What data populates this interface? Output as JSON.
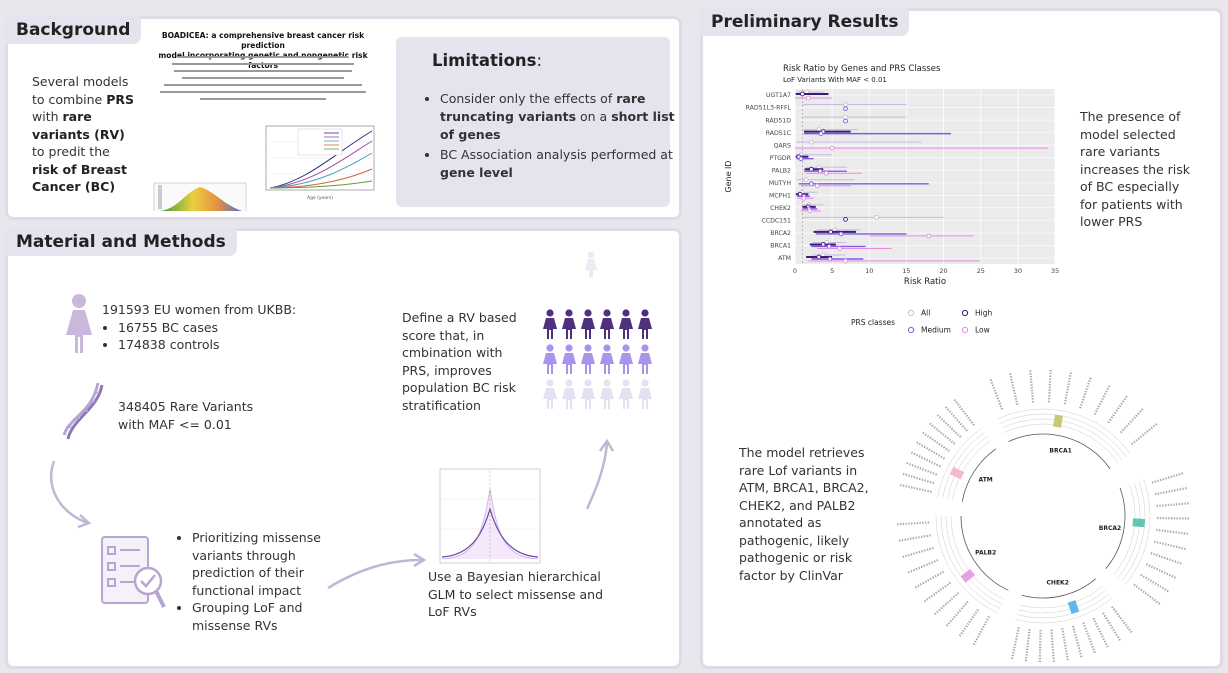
{
  "background": {
    "title": "Background",
    "intro_pre": "Several models to combine",
    "intro_prs": "PRS",
    "intro_with": "with",
    "intro_rv": "rare variants (RV)",
    "intro_mid": "to predit the",
    "intro_risk": "risk of Breast Cancer (BC)",
    "paper_title_1": "BOADICEA: a comprehensive breast cancer risk prediction",
    "paper_title_2": "model incorporating genetic and nongenetic risk factors",
    "paper_axis_x": "Age (years)",
    "limitations_title": "Limitations",
    "limitations_colon": ":",
    "lim1_pre": "Consider only the effects of",
    "lim1_b1": "rare truncating variants",
    "lim1_mid": "on a",
    "lim1_b2": "short list of genes",
    "lim2_pre": "BC Association analysis performed at",
    "lim2_b": "gene level"
  },
  "methods": {
    "title": "Material and Methods",
    "cohort_line": "191593 EU women from UKBB:",
    "cases": "16755 BC cases",
    "controls": "174838 controls",
    "variants_line": "348405 Rare Variants with MAF <= 0.01",
    "step1": "Prioritizing missense variants through prediction of their functional impact",
    "step2": "Grouping LoF and missense RVs",
    "glm": "Use a  Bayesian hierarchical GLM to select missense and LoF RVs",
    "score": "Define a RV based score that, in cmbination with PRS, improves population BC risk stratification"
  },
  "results": {
    "title": "Preliminary Results",
    "finding1": "The presence of model selected rare variants increases the risk of BC especially for patients with lower PRS",
    "finding2": "The model retrieves rare Lof variants in ATM, BRCA1, BRCA2, CHEK2, and PALB2 annotated as pathogenic, likely pathogenic or risk factor by ClinVar"
  },
  "colors": {
    "accent": "#7a5ea8",
    "panel_tab": "#e6e3ef",
    "prs_all": "#c5bde0",
    "prs_high": "#3b1a72",
    "prs_medium": "#7a5be0",
    "prs_low": "#e68ae6"
  },
  "chart_data": {
    "type": "forest",
    "title": "Risk Ratio by Genes and PRS Classes",
    "subtitle": "LoF Variants With MAF < 0.01",
    "xlabel": "Risk Ratio",
    "ylabel": "Gene ID",
    "xlim": [
      0,
      35
    ],
    "xticks": [
      0,
      5,
      10,
      15,
      20,
      25,
      30,
      35
    ],
    "categories": [
      "UGT1A7",
      "RAD51L3-RFFL",
      "RAD51D",
      "RAD51C",
      "QARS",
      "PTGDR",
      "PALB2",
      "MUTYH",
      "MCPH1",
      "CHEK2",
      "CCDC151",
      "BRCA2",
      "BRCA1",
      "ATM"
    ],
    "legend_title": "PRS classes",
    "legend": [
      "All",
      "High",
      "Medium",
      "Low"
    ],
    "series": [
      {
        "name": "All",
        "values": [
          1.6,
          6.8,
          6.8,
          3.2,
          2.2,
          0.8,
          3.2,
          1.5,
          0.9,
          1.9,
          11.0,
          5.3,
          4.3,
          3.8
        ],
        "lo": [
          0.2,
          1.0,
          1.0,
          1.2,
          0.2,
          0.1,
          1.5,
          0.2,
          0.2,
          1.0,
          1.0,
          3.0,
          2.4,
          2.3
        ],
        "hi": [
          3.8,
          15.0,
          15.0,
          8.5,
          17.0,
          5.0,
          7.0,
          8.0,
          3.0,
          3.8,
          20.0,
          8.8,
          6.9,
          6.8
        ]
      },
      {
        "name": "High",
        "values": [
          1.0,
          0.0,
          0.0,
          3.8,
          0.0,
          0.5,
          2.2,
          0.0,
          0.7,
          1.8,
          6.8,
          4.8,
          3.8,
          3.2
        ],
        "lo": [
          0.1,
          0.0,
          0.0,
          1.2,
          0.0,
          0.1,
          1.3,
          0.0,
          0.1,
          1.0,
          6.8,
          2.5,
          2.0,
          1.5
        ],
        "hi": [
          4.5,
          0.0,
          0.0,
          7.5,
          0.0,
          1.8,
          3.8,
          0.0,
          1.8,
          2.8,
          6.8,
          8.2,
          5.5,
          5.0
        ]
      },
      {
        "name": "Medium",
        "values": [
          0.0,
          6.8,
          6.8,
          3.5,
          0.0,
          0.8,
          3.4,
          2.2,
          1.2,
          1.9,
          0.0,
          6.2,
          4.6,
          4.7
        ],
        "lo": [
          0.0,
          6.8,
          6.8,
          1.2,
          0.0,
          0.2,
          1.2,
          0.5,
          0.3,
          1.0,
          0.0,
          2.8,
          2.2,
          2.2
        ],
        "hi": [
          0.0,
          6.8,
          6.8,
          21.0,
          0.0,
          2.5,
          7.0,
          18.0,
          2.0,
          3.0,
          0.0,
          15.0,
          9.5,
          9.2
        ]
      },
      {
        "name": "Low",
        "values": [
          1.8,
          0.0,
          0.0,
          0.0,
          5.0,
          0.0,
          4.2,
          3.0,
          1.2,
          2.0,
          0.0,
          18.0,
          6.0,
          6.8
        ],
        "lo": [
          0.0,
          0.0,
          0.0,
          0.0,
          0.0,
          0.0,
          1.5,
          0.8,
          0.3,
          0.8,
          0.0,
          10.0,
          3.0,
          1.8
        ],
        "hi": [
          5.0,
          0.0,
          0.0,
          0.0,
          34.0,
          0.0,
          9.0,
          7.5,
          2.5,
          3.5,
          0.0,
          24.0,
          13.0,
          25.0
        ]
      }
    ]
  },
  "circos": {
    "genes": [
      "ATM",
      "BRCA1",
      "BRCA2",
      "CHEK2",
      "PALB2"
    ]
  }
}
